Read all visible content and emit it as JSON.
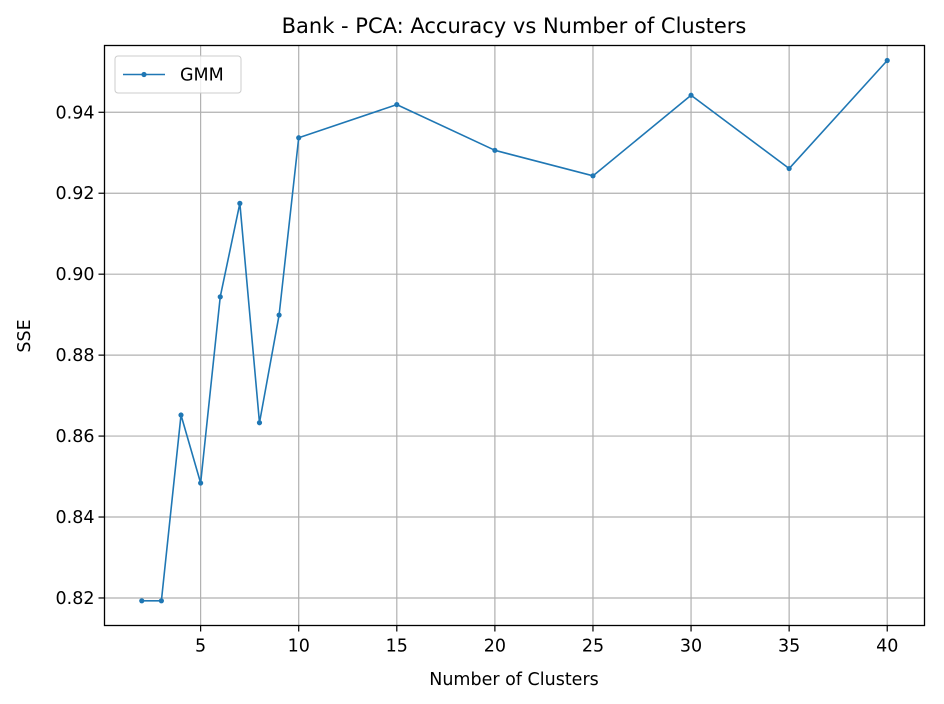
{
  "chart_data": {
    "type": "line",
    "title": "Bank - PCA: Accuracy vs Number of Clusters",
    "xlabel": "Number of Clusters",
    "ylabel": "SSE",
    "xlim": [
      0.1,
      41.9
    ],
    "ylim": [
      0.8132,
      0.9565
    ],
    "xticks": [
      5,
      10,
      15,
      20,
      25,
      30,
      35,
      40
    ],
    "yticks": [
      0.82,
      0.84,
      0.86,
      0.88,
      0.9,
      0.92,
      0.94
    ],
    "ytick_labels": [
      "0.82",
      "0.84",
      "0.86",
      "0.88",
      "0.90",
      "0.92",
      "0.94"
    ],
    "grid": true,
    "legend_position": "top-left",
    "series": [
      {
        "name": "GMM",
        "color": "#1f77b4",
        "marker": "circle",
        "x": [
          2,
          3,
          4,
          5,
          6,
          7,
          8,
          9,
          10,
          15,
          20,
          25,
          30,
          35,
          40
        ],
        "y": [
          0.8193,
          0.8193,
          0.8652,
          0.8484,
          0.8944,
          0.9175,
          0.8633,
          0.8899,
          0.9337,
          0.9419,
          0.9306,
          0.9243,
          0.9442,
          0.9261,
          0.9528
        ]
      }
    ]
  }
}
